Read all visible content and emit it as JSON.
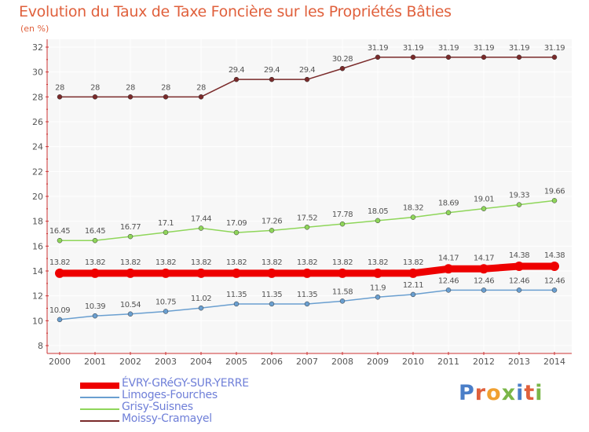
{
  "title": "Evolution du Taux de Taxe Foncière sur les Propriétés Bâties",
  "unit_label": "(en %)",
  "logo_text": "Proxiti",
  "colors": {
    "background_plot": "#f7f7f7",
    "grid": "#ffffff",
    "axis_text": "#555555",
    "value_text": "#555555",
    "title": "#e0603c",
    "legend_text": "#6f7fd8"
  },
  "chart_data": {
    "type": "line",
    "title": "Evolution du Taux de Taxe Foncière sur les Propriétés Bâties",
    "ylabel": "(en %)",
    "xlabel": "",
    "ylim": [
      8,
      32
    ],
    "yticks": [
      "8",
      "10",
      "12",
      "14",
      "16",
      "18",
      "20",
      "22",
      "24",
      "26",
      "28",
      "30",
      "32"
    ],
    "categories": [
      "2000",
      "2001",
      "2002",
      "2003",
      "2004",
      "2005",
      "2006",
      "2007",
      "2008",
      "2009",
      "2010",
      "2011",
      "2012",
      "2013",
      "2014"
    ],
    "series": [
      {
        "name": "ÉVRY-GRéGY-SUR-YERRE",
        "color": "#ee0000",
        "thick": true,
        "values": [
          13.82,
          13.82,
          13.82,
          13.82,
          13.82,
          13.82,
          13.82,
          13.82,
          13.82,
          13.82,
          13.82,
          14.17,
          14.17,
          14.38,
          14.38
        ],
        "labels": [
          "13.82",
          "13.82",
          "13.82",
          "13.82",
          "13.82",
          "13.82",
          "13.82",
          "13.82",
          "13.82",
          "13.82",
          "13.82",
          "14.17",
          "14.17",
          "14.38",
          "14.38"
        ]
      },
      {
        "name": "Limoges-Fourches",
        "color": "#6a9fd0",
        "thick": false,
        "values": [
          10.09,
          10.39,
          10.54,
          10.75,
          11.02,
          11.35,
          11.35,
          11.35,
          11.58,
          11.9,
          12.11,
          12.46,
          12.46,
          12.46,
          12.46
        ],
        "labels": [
          "10.09",
          "10.39",
          "10.54",
          "10.75",
          "11.02",
          "11.35",
          "11.35",
          "11.35",
          "11.58",
          "11.9",
          "12.11",
          "12.46",
          "12.46",
          "12.46",
          "12.46"
        ]
      },
      {
        "name": "Grisy-Suisnes",
        "color": "#8fd65a",
        "thick": false,
        "values": [
          16.45,
          16.45,
          16.77,
          17.1,
          17.44,
          17.09,
          17.26,
          17.52,
          17.78,
          18.05,
          18.32,
          18.69,
          19.01,
          19.33,
          19.66
        ],
        "labels": [
          "16.45",
          "16.45",
          "16.77",
          "17.1",
          "17.44",
          "17.09",
          "17.26",
          "17.52",
          "17.78",
          "18.05",
          "18.32",
          "18.69",
          "19.01",
          "19.33",
          "19.66"
        ]
      },
      {
        "name": "Moissy-Cramayel",
        "color": "#7a2a2a",
        "thick": false,
        "values": [
          28,
          28,
          28,
          28,
          28,
          29.4,
          29.4,
          29.4,
          30.28,
          31.19,
          31.19,
          31.19,
          31.19,
          31.19,
          31.19
        ],
        "labels": [
          "28",
          "28",
          "28",
          "28",
          "28",
          "29.4",
          "29.4",
          "29.4",
          "30.28",
          "31.19",
          "31.19",
          "31.19",
          "31.19",
          "31.19",
          "31.19"
        ]
      }
    ]
  },
  "legend": [
    {
      "label": "ÉVRY-GRéGY-SUR-YERRE"
    },
    {
      "label": "Limoges-Fourches"
    },
    {
      "label": "Grisy-Suisnes"
    },
    {
      "label": "Moissy-Cramayel"
    }
  ]
}
